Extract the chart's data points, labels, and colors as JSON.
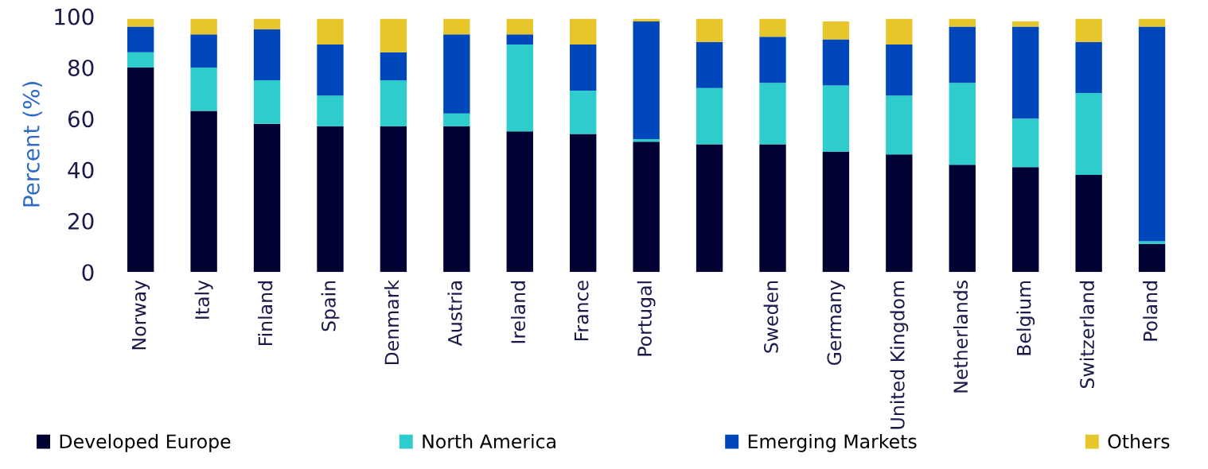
{
  "chart_data": {
    "type": "bar",
    "stacked": true,
    "ylabel": "Percent (%)",
    "categories": [
      "Norway",
      "Italy",
      "Finland",
      "Spain",
      "Denmark",
      "Austria",
      "Ireland",
      "France",
      "Portugal",
      null,
      "Sweden",
      "Germany",
      "United Kingdom",
      "Netherlands",
      "Belgium",
      "Switzerland",
      "Poland"
    ],
    "series": [
      {
        "name": "Developed Europe",
        "color": "#000033",
        "values": [
          80,
          63,
          58,
          57,
          57,
          57,
          55,
          54,
          51,
          50,
          50,
          47,
          46,
          42,
          41,
          38,
          11
        ]
      },
      {
        "name": "North America",
        "color": "#2ecccc",
        "values": [
          6,
          17,
          17,
          12,
          18,
          5,
          34,
          17,
          1,
          22,
          24,
          26,
          23,
          32,
          19,
          32,
          1
        ]
      },
      {
        "name": "Emerging Markets",
        "color": "#0047bb",
        "values": [
          10,
          13,
          20,
          20,
          11,
          31,
          4,
          18,
          46,
          18,
          18,
          18,
          20,
          22,
          36,
          20,
          84
        ]
      },
      {
        "name": "Others",
        "color": "#e6c62a",
        "values": [
          3,
          6,
          4,
          10,
          13,
          6,
          6,
          10,
          1,
          9,
          7,
          7,
          10,
          3,
          2,
          9,
          3
        ]
      }
    ],
    "ylim": [
      0,
      100
    ],
    "yticks": [
      0,
      20,
      40,
      60,
      80,
      100
    ],
    "legend": "bottom"
  }
}
